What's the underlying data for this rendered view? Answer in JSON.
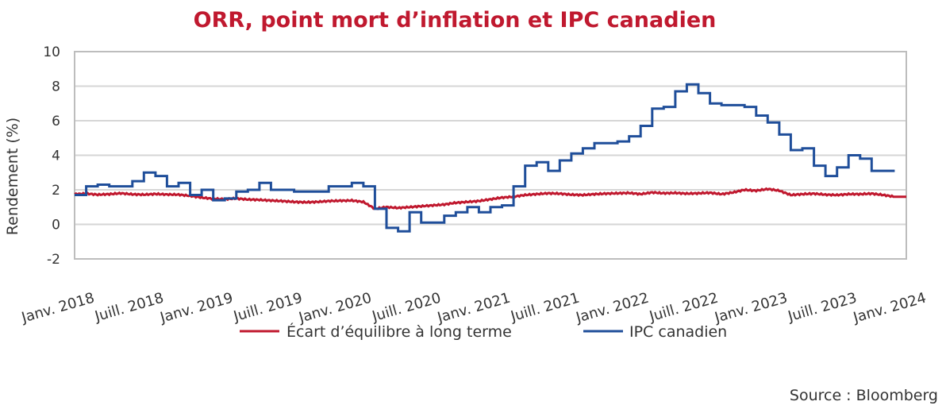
{
  "chart_data": {
    "type": "line",
    "title": "ORR, point mort d’inflation et IPC canadien",
    "ylabel": "Rendement (%)",
    "xlabel": "",
    "ylim": [
      -2,
      10
    ],
    "yticks": [
      "-2",
      "0",
      "2",
      "4",
      "6",
      "8",
      "10"
    ],
    "xtick_labels": [
      "Janv. 2018",
      "Juill. 2018",
      "Janv. 2019",
      "Juill. 2019",
      "Janv. 2020",
      "Juill. 2020",
      "Janv. 2021",
      "Juill. 2021",
      "Janv. 2022",
      "Juill. 2022",
      "Janv. 2023",
      "Juill. 2023",
      "Janv. 2024"
    ],
    "x_start": "2018-01",
    "x_unit": "month",
    "grid": true,
    "legend_position": "bottom",
    "series": [
      {
        "name": "Écart d’équilibre à long terme",
        "color": "#c0182e",
        "values": [
          1.75,
          1.78,
          1.72,
          1.75,
          1.8,
          1.74,
          1.72,
          1.76,
          1.73,
          1.72,
          1.65,
          1.55,
          1.48,
          1.46,
          1.5,
          1.44,
          1.42,
          1.38,
          1.35,
          1.3,
          1.28,
          1.3,
          1.35,
          1.37,
          1.38,
          1.3,
          0.9,
          1.0,
          0.95,
          1.0,
          1.05,
          1.1,
          1.15,
          1.25,
          1.3,
          1.35,
          1.45,
          1.55,
          1.6,
          1.7,
          1.75,
          1.8,
          1.78,
          1.72,
          1.7,
          1.75,
          1.78,
          1.8,
          1.82,
          1.75,
          1.85,
          1.8,
          1.82,
          1.78,
          1.8,
          1.83,
          1.75,
          1.85,
          2.0,
          1.95,
          2.05,
          1.95,
          1.7,
          1.75,
          1.78,
          1.72,
          1.7,
          1.75,
          1.75,
          1.78,
          1.7,
          1.6
        ]
      },
      {
        "name": "IPC canadien",
        "color": "#1f4e9a",
        "values": [
          1.7,
          2.2,
          2.3,
          2.2,
          2.2,
          2.5,
          3.0,
          2.8,
          2.2,
          2.4,
          1.7,
          2.0,
          1.4,
          1.5,
          1.9,
          2.0,
          2.4,
          2.0,
          2.0,
          1.9,
          1.9,
          1.9,
          2.2,
          2.2,
          2.4,
          2.2,
          0.9,
          -0.2,
          -0.4,
          0.7,
          0.1,
          0.1,
          0.5,
          0.7,
          1.0,
          0.7,
          1.0,
          1.1,
          2.2,
          3.4,
          3.6,
          3.1,
          3.7,
          4.1,
          4.4,
          4.7,
          4.7,
          4.8,
          5.1,
          5.7,
          6.7,
          6.8,
          7.7,
          8.1,
          7.6,
          7.0,
          6.9,
          6.9,
          6.8,
          6.3,
          5.9,
          5.2,
          4.3,
          4.4,
          3.4,
          2.8,
          3.3,
          4.0,
          3.8,
          3.1,
          3.1
        ]
      }
    ]
  },
  "source": "Source : Bloomberg"
}
